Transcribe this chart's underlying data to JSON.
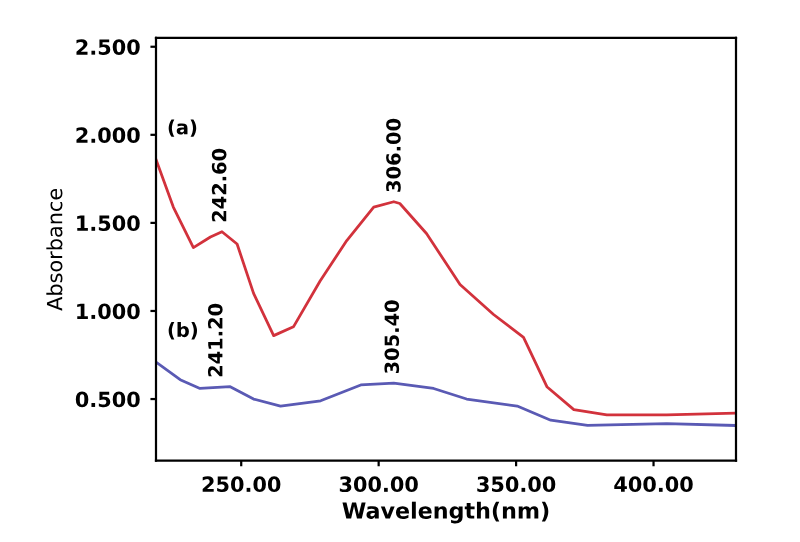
{
  "chart_data": {
    "type": "line",
    "xlabel": "Wavelength(nm)",
    "ylabel": "Absorbance",
    "xlim": [
      219,
      430
    ],
    "ylim": [
      0.15,
      2.55
    ],
    "xticks": [
      {
        "value": 250,
        "label": "250.00"
      },
      {
        "value": 300,
        "label": "300.00"
      },
      {
        "value": 350,
        "label": "350.00"
      },
      {
        "value": 400,
        "label": "400.00"
      }
    ],
    "yticks": [
      {
        "value": 0.5,
        "label": "0.500"
      },
      {
        "value": 1.0,
        "label": "1.000"
      },
      {
        "value": 1.5,
        "label": "1.500"
      },
      {
        "value": 2.0,
        "label": "2.000"
      },
      {
        "value": 2.5,
        "label": "2.500"
      }
    ],
    "grid": false,
    "legend": false,
    "marker": "none",
    "line_style": "solid",
    "series": [
      {
        "name": "(a)",
        "color": "#d2323c",
        "x": [
          219,
          225.3,
          232.6,
          238.8,
          243,
          248.5,
          254.5,
          261.8,
          269,
          278.7,
          288.4,
          298.2,
          305.5,
          307.7,
          317.4,
          329.6,
          341.8,
          352.7,
          361.2,
          371,
          383,
          404.8,
          429.4
        ],
        "values": [
          1.86,
          1.59,
          1.36,
          1.42,
          1.45,
          1.38,
          1.1,
          0.86,
          0.91,
          1.17,
          1.4,
          1.59,
          1.62,
          1.61,
          1.44,
          1.15,
          0.98,
          0.85,
          0.57,
          0.44,
          0.41,
          0.41,
          0.42
        ]
      },
      {
        "name": "(b)",
        "color": "#5a5ab4",
        "x": [
          219,
          227.8,
          235,
          246,
          254.5,
          264.3,
          278.9,
          293.5,
          305.5,
          320,
          332,
          350.4,
          362.6,
          376,
          404.8,
          429.4
        ],
        "values": [
          0.71,
          0.61,
          0.56,
          0.57,
          0.5,
          0.46,
          0.49,
          0.58,
          0.59,
          0.56,
          0.5,
          0.46,
          0.38,
          0.35,
          0.36,
          0.35
        ]
      }
    ],
    "annotations": [
      {
        "text": "242.60",
        "x": 242.6,
        "y": 1.45
      },
      {
        "text": "306.00",
        "x": 306.0,
        "y": 1.62
      },
      {
        "text": "241.20",
        "x": 241.2,
        "y": 0.57
      },
      {
        "text": "305.40",
        "x": 305.4,
        "y": 0.59
      }
    ]
  }
}
